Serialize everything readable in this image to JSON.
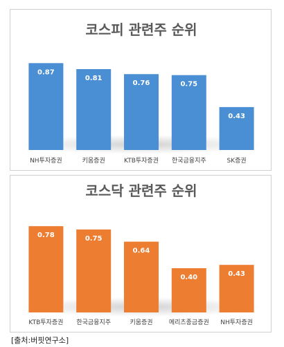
{
  "chart_data": [
    {
      "type": "bar",
      "title": "코스피 관련주 순위",
      "categories": [
        "NH투자증권",
        "키움증권",
        "KTB투자증권",
        "한국금융지주",
        "SK증권"
      ],
      "values": [
        0.87,
        0.81,
        0.76,
        0.75,
        0.43
      ],
      "value_labels": [
        "0.87",
        "0.81",
        "0.76",
        "0.75",
        "0.43"
      ],
      "color": "#4a8fd4",
      "ylim": [
        0,
        0.9
      ],
      "grid": false,
      "legend": "none"
    },
    {
      "type": "bar",
      "title": "코스닥 관련주 순위",
      "categories": [
        "KTB투자증권",
        "한국금융지주",
        "키움증권",
        "메리츠종금증권",
        "NH투자증권"
      ],
      "values": [
        0.78,
        0.75,
        0.64,
        0.4,
        0.43
      ],
      "value_labels": [
        "0.78",
        "0.75",
        "0.64",
        "0.40",
        "0.43"
      ],
      "color": "#ed7d31",
      "ylim": [
        0,
        0.8
      ],
      "grid": false,
      "legend": "none"
    }
  ],
  "source": "[출처:버핏연구소]"
}
